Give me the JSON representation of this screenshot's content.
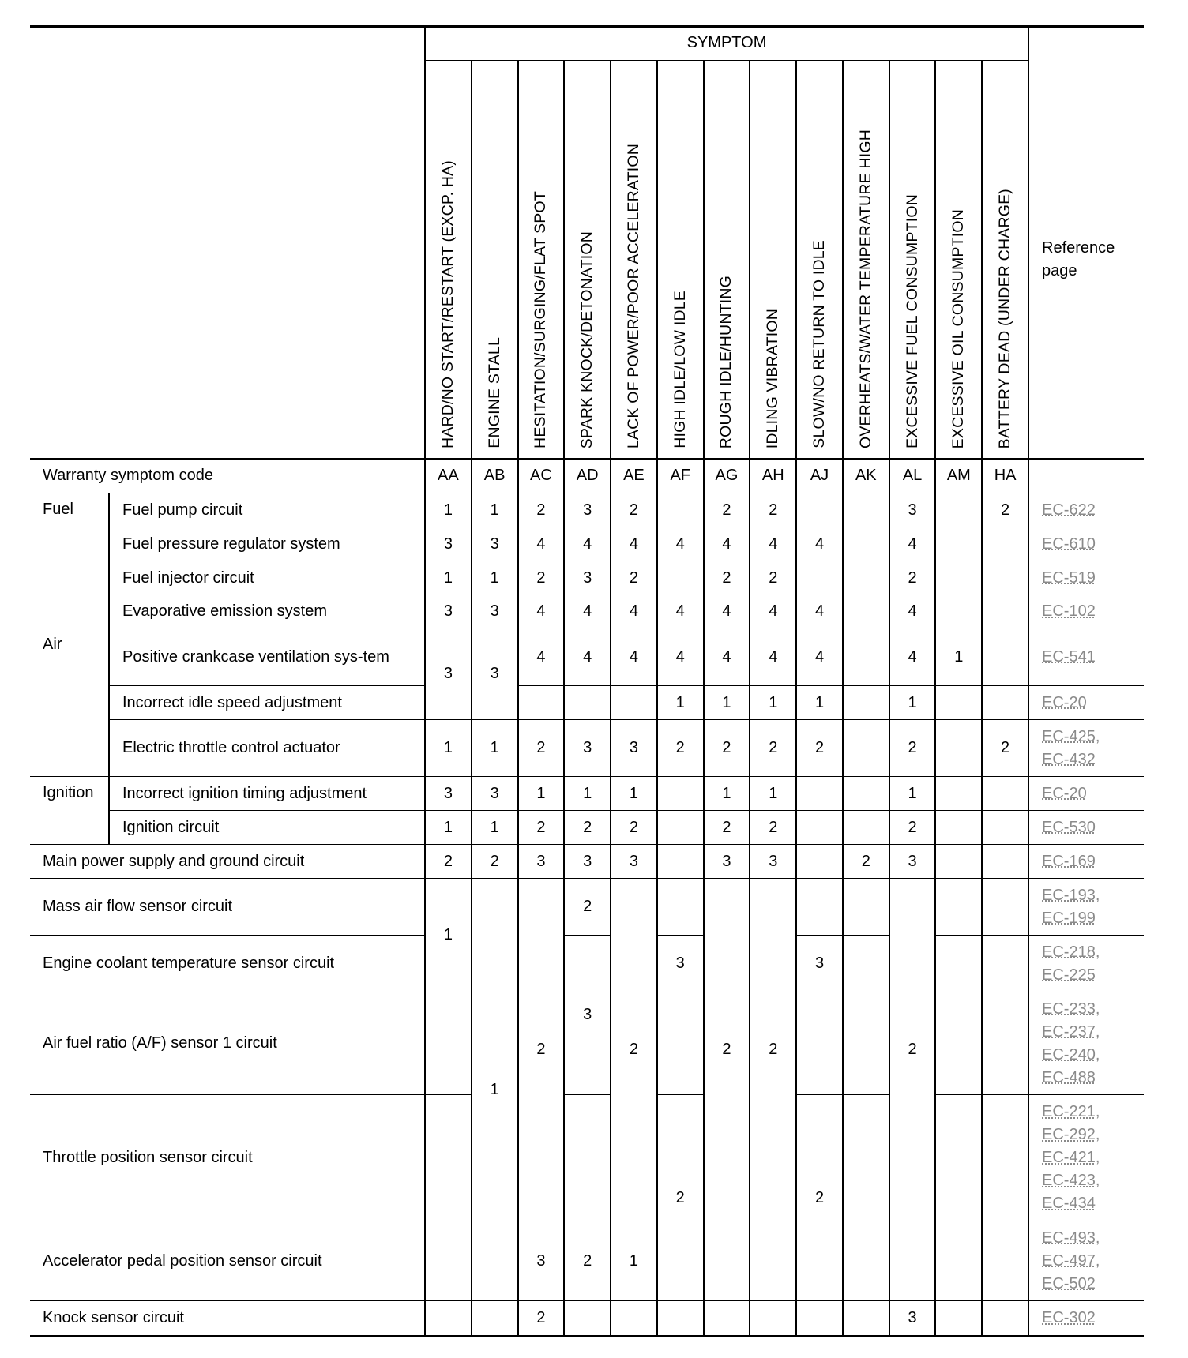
{
  "header": {
    "symptom_title": "SYMPTOM",
    "reference_title": "Reference page",
    "warranty_label": "Warranty symptom code"
  },
  "symptoms": [
    {
      "label": "HARD/NO START/RESTART (EXCP. HA)",
      "code": "AA"
    },
    {
      "label": "ENGINE STALL",
      "code": "AB"
    },
    {
      "label": "HESITATION/SURGING/FLAT SPOT",
      "code": "AC"
    },
    {
      "label": "SPARK KNOCK/DETONATION",
      "code": "AD"
    },
    {
      "label": "LACK OF POWER/POOR ACCELERATION",
      "code": "AE"
    },
    {
      "label": "HIGH IDLE/LOW IDLE",
      "code": "AF"
    },
    {
      "label": "ROUGH IDLE/HUNTING",
      "code": "AG"
    },
    {
      "label": "IDLING VIBRATION",
      "code": "AH"
    },
    {
      "label": "SLOW/NO RETURN TO IDLE",
      "code": "AJ"
    },
    {
      "label": "OVERHEATS/WATER TEMPERATURE HIGH",
      "code": "AK"
    },
    {
      "label": "EXCESSIVE FUEL CONSUMPTION",
      "code": "AL"
    },
    {
      "label": "EXCESSIVE OIL CONSUMPTION",
      "code": "AM"
    },
    {
      "label": "BATTERY DEAD (UNDER CHARGE)",
      "code": "HA"
    }
  ],
  "categories": [
    "Fuel",
    "Air",
    "Ignition"
  ],
  "rows": [
    {
      "label": "Fuel pump circuit",
      "values": [
        "1",
        "1",
        "2",
        "3",
        "2",
        "",
        "2",
        "2",
        "",
        "",
        "3",
        "",
        "2"
      ],
      "refs": [
        "EC-622"
      ]
    },
    {
      "label": "Fuel pressure regulator system",
      "values": [
        "3",
        "3",
        "4",
        "4",
        "4",
        "4",
        "4",
        "4",
        "4",
        "",
        "4",
        "",
        ""
      ],
      "refs": [
        "EC-610"
      ]
    },
    {
      "label": "Fuel injector circuit",
      "values": [
        "1",
        "1",
        "2",
        "3",
        "2",
        "",
        "2",
        "2",
        "",
        "",
        "2",
        "",
        ""
      ],
      "refs": [
        "EC-519"
      ]
    },
    {
      "label": "Evaporative emission system",
      "values": [
        "3",
        "3",
        "4",
        "4",
        "4",
        "4",
        "4",
        "4",
        "4",
        "",
        "4",
        "",
        ""
      ],
      "refs": [
        "EC-102"
      ]
    },
    {
      "label": "Positive crankcase ventilation sys-tem",
      "values": [
        "3",
        "3",
        "4",
        "4",
        "4",
        "4",
        "4",
        "4",
        "4",
        "",
        "4",
        "1",
        ""
      ],
      "refs": [
        "EC-541"
      ]
    },
    {
      "label": "Incorrect idle speed adjustment",
      "values": [
        "",
        "",
        "",
        "",
        "",
        "1",
        "1",
        "1",
        "1",
        "",
        "1",
        "",
        ""
      ],
      "refs": [
        "EC-20"
      ]
    },
    {
      "label": "Electric throttle control actuator",
      "values": [
        "1",
        "1",
        "2",
        "3",
        "3",
        "2",
        "2",
        "2",
        "2",
        "",
        "2",
        "",
        "2"
      ],
      "refs": [
        "EC-425,",
        "EC-432"
      ]
    },
    {
      "label": "Incorrect ignition timing adjustment",
      "values": [
        "3",
        "3",
        "1",
        "1",
        "1",
        "",
        "1",
        "1",
        "",
        "",
        "1",
        "",
        ""
      ],
      "refs": [
        "EC-20"
      ]
    },
    {
      "label": "Ignition circuit",
      "values": [
        "1",
        "1",
        "2",
        "2",
        "2",
        "",
        "2",
        "2",
        "",
        "",
        "2",
        "",
        ""
      ],
      "refs": [
        "EC-530"
      ]
    },
    {
      "label": "Main power supply and ground circuit",
      "values": [
        "2",
        "2",
        "3",
        "3",
        "3",
        "",
        "3",
        "3",
        "",
        "2",
        "3",
        "",
        ""
      ],
      "refs": [
        "EC-169"
      ]
    },
    {
      "label": "Mass air flow sensor circuit",
      "values": [
        "1",
        "1",
        "2",
        "2",
        "2",
        "",
        "2",
        "2",
        "",
        "",
        "2",
        "",
        ""
      ],
      "refs": [
        "EC-193,",
        "EC-199"
      ]
    },
    {
      "label": "Engine coolant temperature sensor circuit",
      "values": [
        "",
        "",
        "",
        "3",
        "",
        "3",
        "",
        "",
        "3",
        "",
        "",
        "",
        ""
      ],
      "refs": [
        "EC-218,",
        "EC-225"
      ]
    },
    {
      "label": "Air fuel ratio (A/F) sensor 1 circuit",
      "values": [
        "",
        "",
        "",
        "",
        "",
        "",
        "",
        "",
        "",
        "",
        "",
        "",
        ""
      ],
      "refs": [
        "EC-233,",
        "EC-237,",
        "EC-240,",
        "EC-488"
      ]
    },
    {
      "label": "Throttle position sensor circuit",
      "values": [
        "",
        "",
        "",
        "",
        "",
        "2",
        "",
        "",
        "2",
        "",
        "",
        "",
        ""
      ],
      "refs": [
        "EC-221,",
        "EC-292,",
        "EC-421,",
        "EC-423,",
        "EC-434"
      ]
    },
    {
      "label": "Accelerator pedal position sensor circuit",
      "values": [
        "",
        "",
        "3",
        "2",
        "1",
        "",
        "",
        "",
        "",
        "",
        "",
        "",
        ""
      ],
      "refs": [
        "EC-493,",
        "EC-497,",
        "EC-502"
      ]
    },
    {
      "label": "Knock sensor circuit",
      "values": [
        "",
        "",
        "2",
        "",
        "",
        "",
        "",
        "",
        "",
        "",
        "3",
        "",
        ""
      ],
      "refs": [
        "EC-302"
      ]
    }
  ],
  "colors": {
    "line": "#000000",
    "link": "#8a8a8a"
  }
}
